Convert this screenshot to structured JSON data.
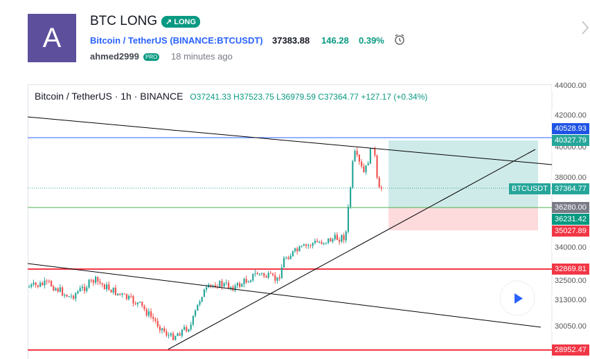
{
  "idea": {
    "avatar": "A",
    "title": "BTC LONG",
    "badge": "LONG",
    "symbol": "Bitcoin / TetherUS (BINANCE:BTCUSDT)",
    "price": "37383.88",
    "change": "146.28",
    "change_pct": "0.39%",
    "author": "ahmed2999",
    "author_badge": "PRO",
    "time": "18 minutes ago"
  },
  "chart": {
    "legend": "Bitcoin / TetherUS · 1h · BINANCE",
    "open": "O37241.33",
    "high": "H37523.75",
    "low": "L36979.59",
    "close": "C37364.77",
    "delta": "+127.17 (+0.34%)",
    "price_labels": [
      "44000.00",
      "42000.00",
      "40528.93",
      "40327.79",
      "40000.00",
      "38000.00",
      "BTCUSDT",
      "37364.77",
      "36280.00",
      "36231.42",
      "35027.89",
      "34000.00",
      "32869.81",
      "32500.00",
      "31300.00",
      "30050.00",
      "28952.47"
    ]
  }
}
